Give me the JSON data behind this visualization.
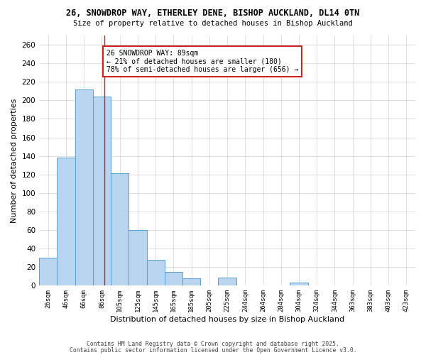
{
  "title1": "26, SNOWDROP WAY, ETHERLEY DENE, BISHOP AUCKLAND, DL14 0TN",
  "title2": "Size of property relative to detached houses in Bishop Auckland",
  "xlabel": "Distribution of detached houses by size in Bishop Auckland",
  "ylabel": "Number of detached properties",
  "bar_labels": [
    "26sqm",
    "46sqm",
    "66sqm",
    "86sqm",
    "105sqm",
    "125sqm",
    "145sqm",
    "165sqm",
    "185sqm",
    "205sqm",
    "225sqm",
    "244sqm",
    "264sqm",
    "284sqm",
    "304sqm",
    "324sqm",
    "344sqm",
    "363sqm",
    "383sqm",
    "403sqm",
    "423sqm"
  ],
  "bar_values": [
    30,
    138,
    212,
    204,
    121,
    60,
    28,
    15,
    8,
    0,
    9,
    0,
    0,
    0,
    3,
    0,
    0,
    0,
    0,
    0,
    0
  ],
  "bar_color": "#b8d4ee",
  "bar_edge_color": "#5a9fd4",
  "background_color": "#ffffff",
  "grid_color": "#d0d0d0",
  "vline_color": "#cc2222",
  "vline_pos": 3.15,
  "annotation_text": "26 SNOWDROP WAY: 89sqm\n← 21% of detached houses are smaller (180)\n78% of semi-detached houses are larger (656) →",
  "annotation_box_color": "#ffffff",
  "annotation_box_edge_color": "#cc2222",
  "ylim": [
    0,
    270
  ],
  "yticks": [
    0,
    20,
    40,
    60,
    80,
    100,
    120,
    140,
    160,
    180,
    200,
    220,
    240,
    260
  ],
  "footer1": "Contains HM Land Registry data © Crown copyright and database right 2025.",
  "footer2": "Contains public sector information licensed under the Open Government Licence v3.0."
}
